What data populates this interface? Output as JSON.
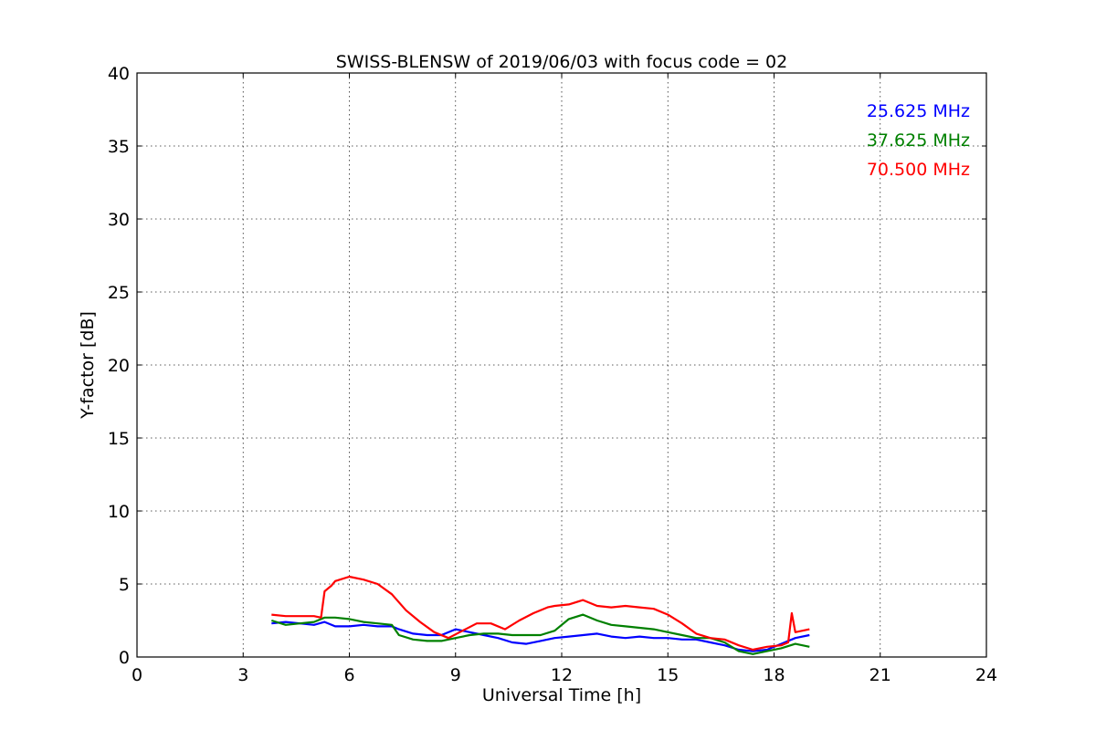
{
  "chart_data": {
    "type": "line",
    "title": "SWISS-BLENSW of 2019/06/03 with focus code = 02",
    "xlabel": "Universal Time [h]",
    "ylabel": "Y-factor [dB]",
    "xlim": [
      0,
      24
    ],
    "ylim": [
      0,
      40
    ],
    "xticks": [
      0,
      3,
      6,
      9,
      12,
      15,
      18,
      21,
      24
    ],
    "yticks": [
      0,
      5,
      10,
      15,
      20,
      25,
      30,
      35,
      40
    ],
    "grid": true,
    "legend_position": "top-right",
    "series": [
      {
        "name": "25.625 MHz",
        "color": "#0000ff",
        "x": [
          3.8,
          4.2,
          4.6,
          5.0,
          5.3,
          5.6,
          6.0,
          6.4,
          6.8,
          7.2,
          7.4,
          7.8,
          8.2,
          8.6,
          9.0,
          9.4,
          9.8,
          10.2,
          10.6,
          11.0,
          11.4,
          11.8,
          12.2,
          12.6,
          13.0,
          13.4,
          13.8,
          14.2,
          14.6,
          15.0,
          15.4,
          15.8,
          16.2,
          16.6,
          17.0,
          17.4,
          17.8,
          18.2,
          18.6,
          19.0
        ],
        "y": [
          2.3,
          2.4,
          2.3,
          2.2,
          2.4,
          2.1,
          2.1,
          2.2,
          2.1,
          2.1,
          1.9,
          1.6,
          1.5,
          1.5,
          1.9,
          1.7,
          1.5,
          1.3,
          1.0,
          0.9,
          1.1,
          1.3,
          1.4,
          1.5,
          1.6,
          1.4,
          1.3,
          1.4,
          1.3,
          1.3,
          1.2,
          1.2,
          1.0,
          0.8,
          0.5,
          0.4,
          0.5,
          0.9,
          1.3,
          1.5
        ]
      },
      {
        "name": "37.625 MHz",
        "color": "#008000",
        "x": [
          3.8,
          4.2,
          4.6,
          5.0,
          5.3,
          5.6,
          6.0,
          6.4,
          6.8,
          7.2,
          7.4,
          7.8,
          8.2,
          8.6,
          9.0,
          9.4,
          9.8,
          10.2,
          10.6,
          11.0,
          11.4,
          11.8,
          12.2,
          12.6,
          13.0,
          13.4,
          13.8,
          14.2,
          14.6,
          15.0,
          15.4,
          15.8,
          16.2,
          16.6,
          17.0,
          17.4,
          17.8,
          18.2,
          18.6,
          19.0
        ],
        "y": [
          2.5,
          2.2,
          2.3,
          2.4,
          2.7,
          2.7,
          2.6,
          2.4,
          2.3,
          2.2,
          1.5,
          1.2,
          1.1,
          1.1,
          1.3,
          1.5,
          1.6,
          1.6,
          1.5,
          1.5,
          1.5,
          1.8,
          2.6,
          2.9,
          2.5,
          2.2,
          2.1,
          2.0,
          1.9,
          1.7,
          1.5,
          1.3,
          1.3,
          1.0,
          0.4,
          0.2,
          0.4,
          0.6,
          0.9,
          0.7
        ]
      },
      {
        "name": "70.500 MHz",
        "color": "#ff0000",
        "x": [
          3.8,
          4.2,
          4.6,
          5.0,
          5.2,
          5.3,
          5.5,
          5.6,
          6.0,
          6.4,
          6.8,
          7.2,
          7.6,
          8.0,
          8.4,
          8.8,
          9.2,
          9.6,
          10.0,
          10.4,
          10.8,
          11.2,
          11.6,
          11.8,
          12.2,
          12.6,
          13.0,
          13.4,
          13.8,
          14.2,
          14.6,
          15.0,
          15.4,
          15.8,
          16.2,
          16.6,
          17.0,
          17.4,
          17.8,
          18.2,
          18.4,
          18.5,
          18.6,
          19.0
        ],
        "y": [
          2.9,
          2.8,
          2.8,
          2.8,
          2.7,
          4.5,
          4.9,
          5.2,
          5.5,
          5.3,
          5.0,
          4.3,
          3.2,
          2.4,
          1.7,
          1.3,
          1.8,
          2.3,
          2.3,
          1.9,
          2.5,
          3.0,
          3.4,
          3.5,
          3.6,
          3.9,
          3.5,
          3.4,
          3.5,
          3.4,
          3.3,
          2.9,
          2.3,
          1.6,
          1.3,
          1.2,
          0.8,
          0.5,
          0.7,
          0.8,
          1.0,
          3.0,
          1.7,
          1.9
        ]
      }
    ]
  }
}
